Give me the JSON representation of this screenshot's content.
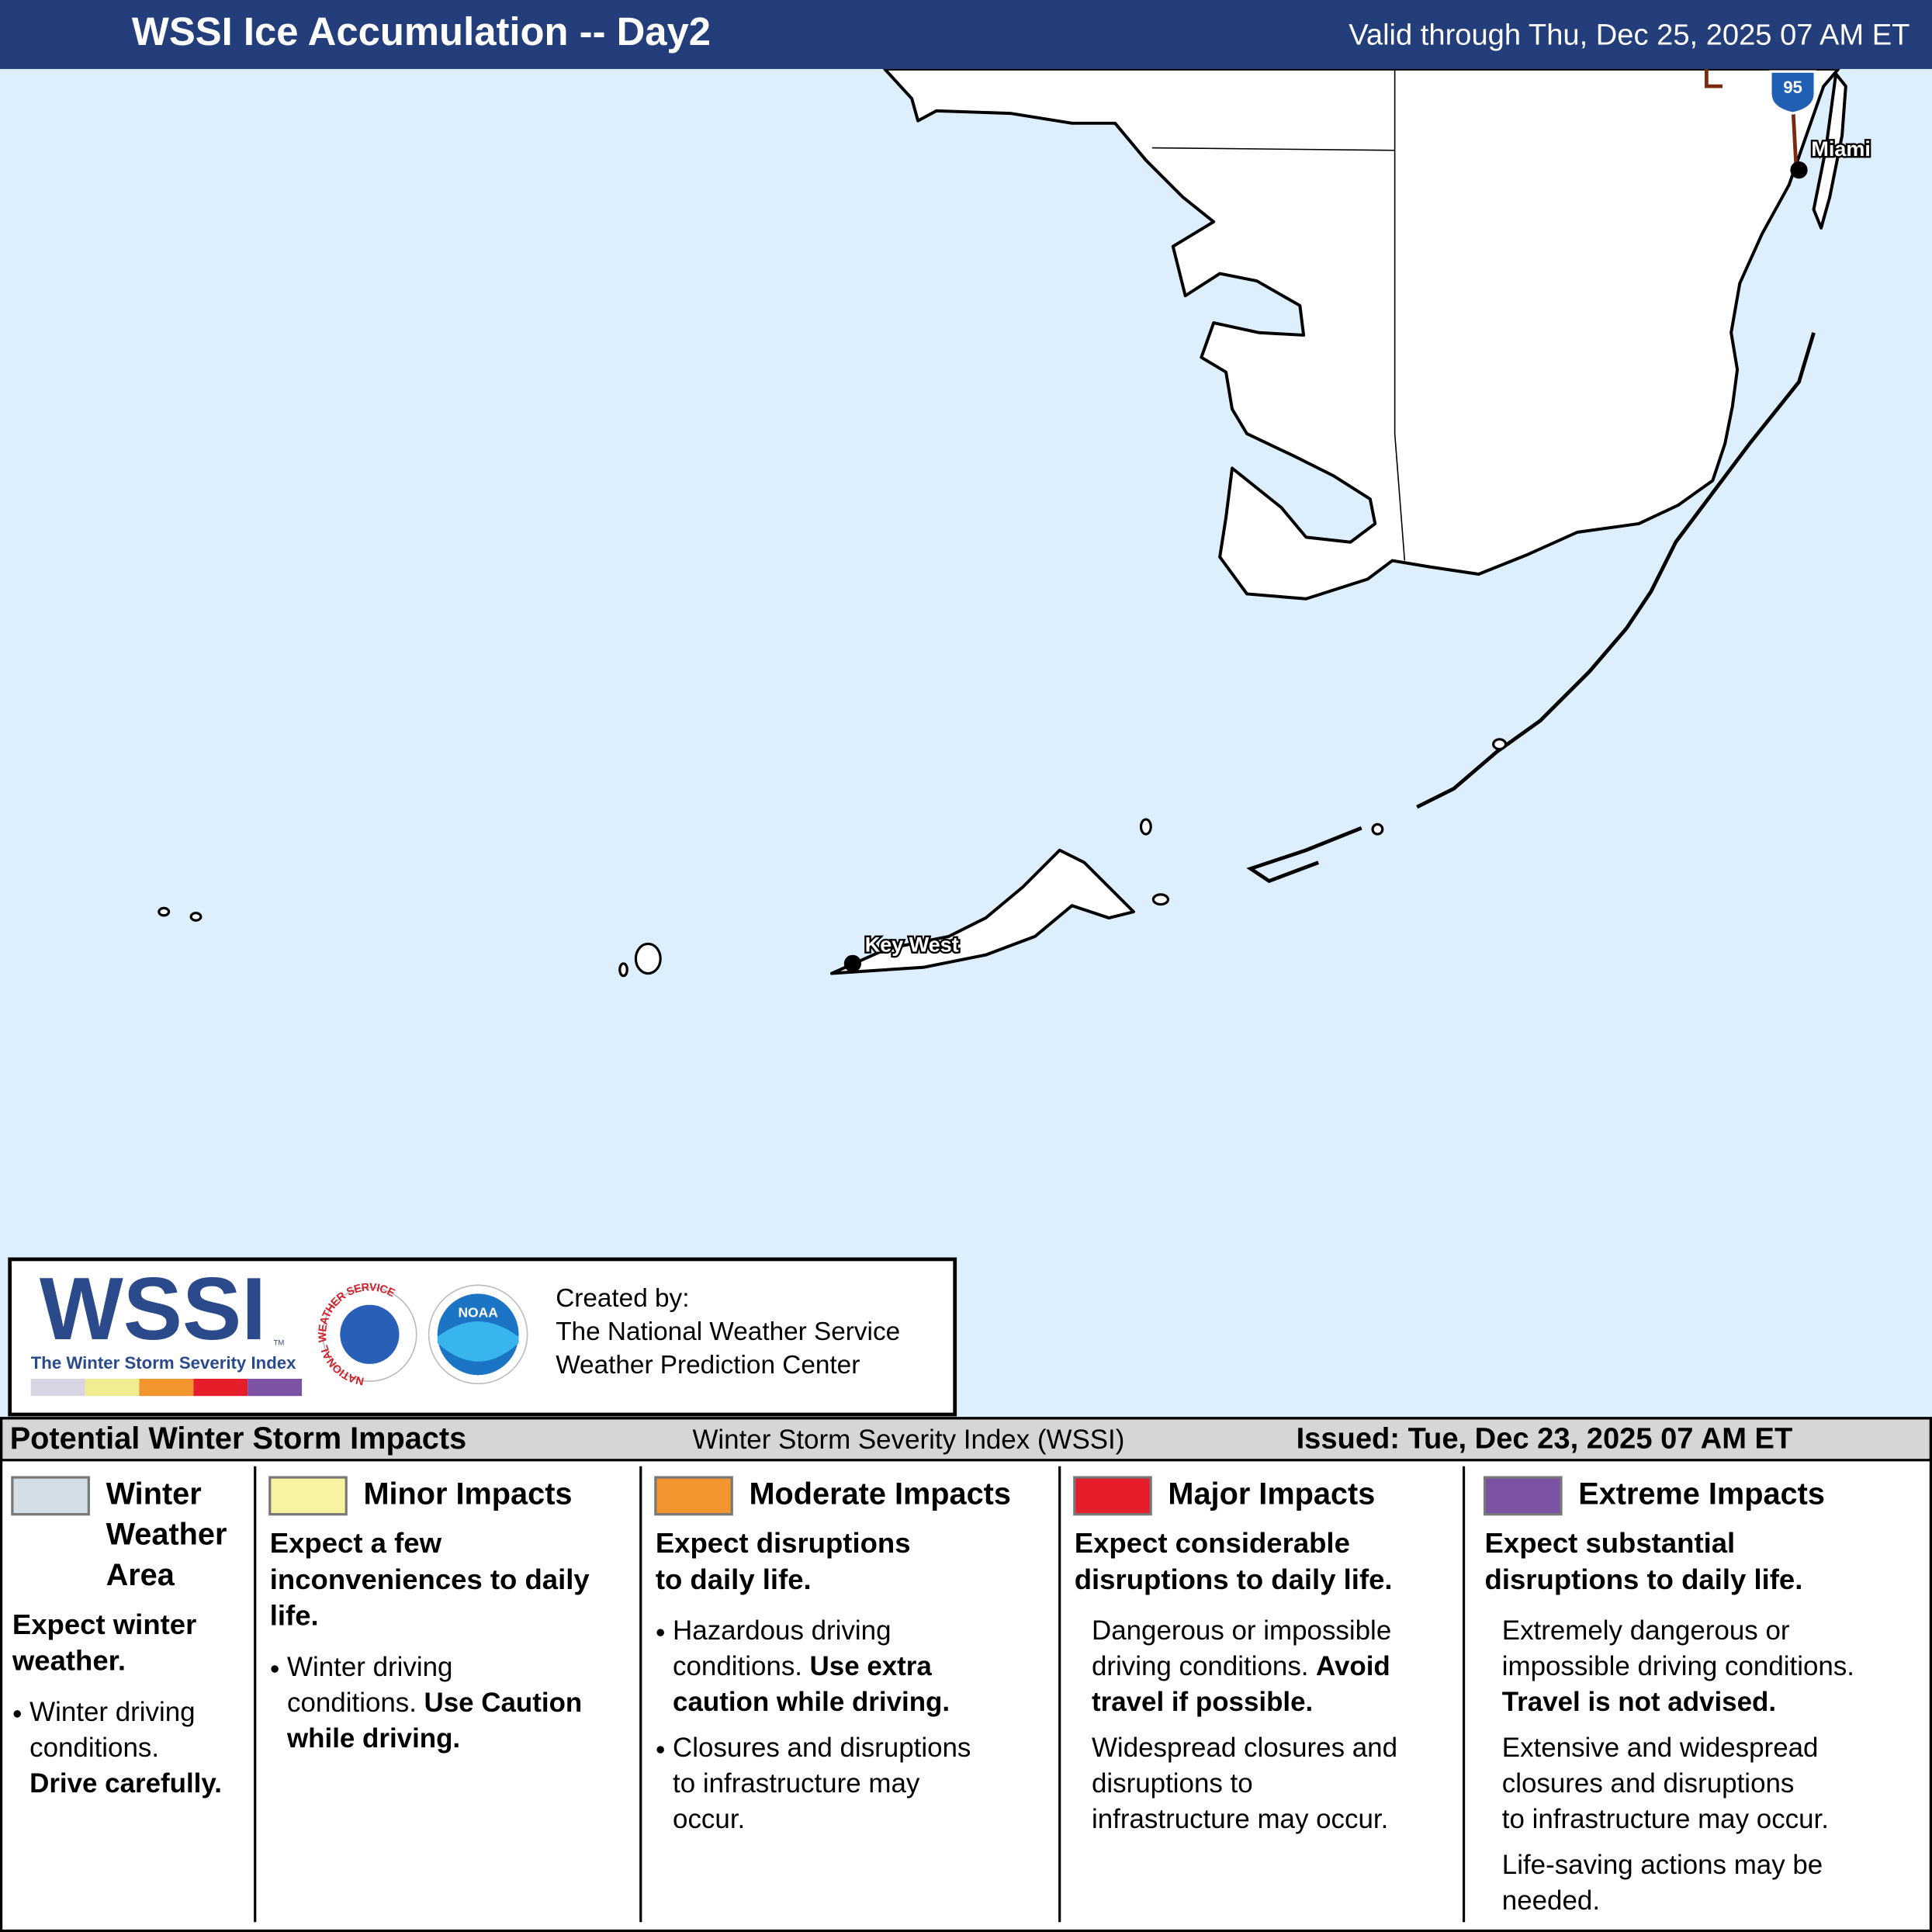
{
  "header": {
    "title": "WSSI Ice Accumulation -- Day2",
    "valid": "Valid through Thu, Dec 25, 2025 07 AM ET"
  },
  "map": {
    "labels": [
      "Miami",
      "Key West"
    ],
    "highway": "95"
  },
  "logo": {
    "wordmark": "WSSI",
    "tm": "TM",
    "tagline": "The Winter Storm Severity Index",
    "nws_ring": "NATIONAL WEATHER SERVICE",
    "noaa": "NOAA",
    "credit": [
      "Created by:",
      "The National Weather Service",
      "Weather Prediction Center"
    ]
  },
  "legend": {
    "title": "Potential Winter Storm Impacts",
    "subtitle": "Winter Storm Severity Index (WSSI)",
    "issued": "Issued: Tue, Dec 23, 2025 07 AM ET",
    "columns": [
      {
        "name": [
          "Winter",
          "Weather",
          "Area"
        ],
        "color": "#d2dde6",
        "bullet": true,
        "summary": [
          "Expect winter",
          "weather."
        ],
        "notes": [
          [
            [
              {
                "text": "Winter driving"
              }
            ],
            [
              {
                "text": "conditions."
              }
            ],
            [
              {
                "text": "Drive carefully.",
                "bold": true
              }
            ]
          ]
        ]
      },
      {
        "name": [
          "Minor Impacts"
        ],
        "color": "#f7f3a0",
        "bullet": true,
        "summary": [
          "Expect a few",
          "inconveniences to daily",
          "life."
        ],
        "notes": [
          [
            [
              {
                "text": "Winter driving"
              }
            ],
            [
              {
                "text": "conditions."
              },
              {
                "text": "Use Caution",
                "bold": true
              }
            ],
            [
              {
                "text": "while driving.",
                "bold": true
              }
            ]
          ]
        ]
      },
      {
        "name": [
          "Moderate Impacts"
        ],
        "color": "#f3952f",
        "bullet": true,
        "summary": [
          "Expect disruptions",
          "to daily life."
        ],
        "notes": [
          [
            [
              {
                "text": "Hazardous driving"
              }
            ],
            [
              {
                "text": "conditions."
              },
              {
                "text": "Use extra",
                "bold": true
              }
            ],
            [
              {
                "text": "caution while driving.",
                "bold": true
              }
            ]
          ],
          [
            [
              {
                "text": "Closures and disruptions"
              }
            ],
            [
              {
                "text": "to infrastructure may"
              }
            ],
            [
              {
                "text": "occur."
              }
            ]
          ]
        ]
      },
      {
        "name": [
          "Major Impacts"
        ],
        "color": "#e61e2b",
        "bullet": false,
        "summary": [
          "Expect considerable",
          "disruptions to daily life."
        ],
        "notes": [
          [
            [
              {
                "text": "Dangerous or impossible"
              }
            ],
            [
              {
                "text": "driving conditions."
              },
              {
                "text": "Avoid",
                "bold": true
              }
            ],
            [
              {
                "text": "travel if possible.",
                "bold": true
              }
            ]
          ],
          [
            [
              {
                "text": "Widespread closures and"
              }
            ],
            [
              {
                "text": "disruptions to"
              }
            ],
            [
              {
                "text": "infrastructure may occur."
              }
            ]
          ]
        ]
      },
      {
        "name": [
          "Extreme Impacts"
        ],
        "color": "#7b52a4",
        "bullet": false,
        "summary": [
          "Expect substantial",
          "disruptions to daily life."
        ],
        "notes": [
          [
            [
              {
                "text": "Extremely dangerous or"
              }
            ],
            [
              {
                "text": "impossible driving conditions."
              }
            ],
            [
              {
                "text": "Travel is not advised.",
                "bold": true
              }
            ]
          ],
          [
            [
              {
                "text": "Extensive and widespread"
              }
            ],
            [
              {
                "text": "closures and disruptions"
              }
            ],
            [
              {
                "text": "to infrastructure may occur."
              }
            ]
          ],
          [
            [
              {
                "text": "Life-saving actions may be"
              }
            ],
            [
              {
                "text": "needed."
              }
            ]
          ]
        ]
      }
    ]
  }
}
